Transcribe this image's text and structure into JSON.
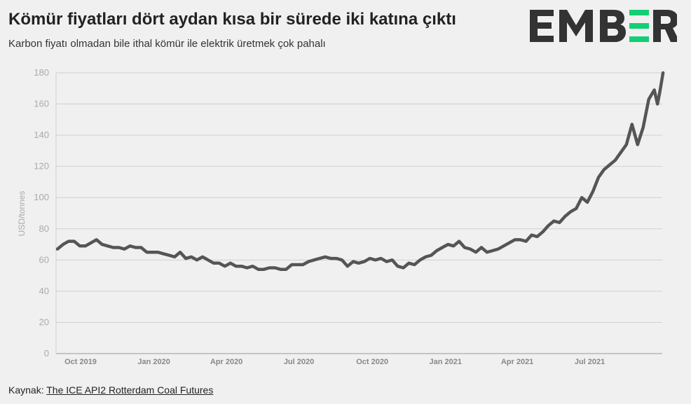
{
  "title": "Kömür fiyatları dört aydan kısa bir sürede iki katına çıktı",
  "subtitle": "Karbon fiyatı olmadan bile ithal kömür ile elektrik üretmek çok pahalı",
  "logo": {
    "text": "EMBER",
    "accent": "#13ce74",
    "color": "#333333"
  },
  "source": {
    "label": "Kaynak:",
    "link": "The ICE API2 Rotterdam Coal Futures"
  },
  "chart_data": {
    "type": "line",
    "title": "",
    "xlabel": "",
    "ylabel": "USD/tonnes",
    "ylim": [
      0,
      180
    ],
    "yticks": [
      0,
      20,
      40,
      60,
      80,
      100,
      120,
      140,
      160,
      180
    ],
    "xticks": [
      {
        "date": "2019-10-01",
        "label": "Oct 2019"
      },
      {
        "date": "2020-01-01",
        "label": "Jan 2020"
      },
      {
        "date": "2020-04-01",
        "label": "Apr 2020"
      },
      {
        "date": "2020-07-01",
        "label": "Jul 2020"
      },
      {
        "date": "2020-10-01",
        "label": "Oct 2020"
      },
      {
        "date": "2021-01-01",
        "label": "Jan 2021"
      },
      {
        "date": "2021-04-01",
        "label": "Apr 2021"
      },
      {
        "date": "2021-07-01",
        "label": "Jul 2021"
      }
    ],
    "grid": true,
    "line_color": "#555555",
    "series": [
      {
        "x": [
          "2019-09-02",
          "2019-09-09",
          "2019-09-16",
          "2019-09-23",
          "2019-09-30",
          "2019-10-07",
          "2019-10-14",
          "2019-10-21",
          "2019-10-28",
          "2019-11-04",
          "2019-11-11",
          "2019-11-18",
          "2019-11-25",
          "2019-12-02",
          "2019-12-09",
          "2019-12-16",
          "2019-12-23",
          "2020-01-06",
          "2020-01-13",
          "2020-01-20",
          "2020-01-27",
          "2020-02-03",
          "2020-02-10",
          "2020-02-17",
          "2020-02-24",
          "2020-03-02",
          "2020-03-09",
          "2020-03-16",
          "2020-03-23",
          "2020-03-30",
          "2020-04-06",
          "2020-04-13",
          "2020-04-20",
          "2020-04-27",
          "2020-05-04",
          "2020-05-11",
          "2020-05-18",
          "2020-05-25",
          "2020-06-01",
          "2020-06-08",
          "2020-06-15",
          "2020-06-22",
          "2020-06-29",
          "2020-07-06",
          "2020-07-13",
          "2020-07-20",
          "2020-07-27",
          "2020-08-03",
          "2020-08-10",
          "2020-08-17",
          "2020-08-24",
          "2020-08-31",
          "2020-09-07",
          "2020-09-14",
          "2020-09-21",
          "2020-09-28",
          "2020-10-05",
          "2020-10-12",
          "2020-10-19",
          "2020-10-26",
          "2020-11-02",
          "2020-11-09",
          "2020-11-16",
          "2020-11-23",
          "2020-11-30",
          "2020-12-07",
          "2020-12-14",
          "2020-12-21",
          "2020-12-28",
          "2021-01-04",
          "2021-01-11",
          "2021-01-18",
          "2021-01-25",
          "2021-02-01",
          "2021-02-08",
          "2021-02-15",
          "2021-02-22",
          "2021-03-01",
          "2021-03-08",
          "2021-03-15",
          "2021-03-22",
          "2021-03-29",
          "2021-04-05",
          "2021-04-12",
          "2021-04-19",
          "2021-04-26",
          "2021-05-03",
          "2021-05-10",
          "2021-05-17",
          "2021-05-24",
          "2021-05-31",
          "2021-06-07",
          "2021-06-14",
          "2021-06-21",
          "2021-06-28",
          "2021-07-05",
          "2021-07-12",
          "2021-07-19",
          "2021-07-26",
          "2021-08-02",
          "2021-08-09",
          "2021-08-16",
          "2021-08-23",
          "2021-08-30",
          "2021-09-06",
          "2021-09-13",
          "2021-09-20",
          "2021-09-24",
          "2021-09-27",
          "2021-10-01"
        ],
        "values": [
          67,
          70,
          72,
          72,
          69,
          69,
          71,
          73,
          70,
          69,
          68,
          68,
          67,
          69,
          68,
          68,
          65,
          65,
          64,
          63,
          62,
          65,
          61,
          62,
          60,
          62,
          60,
          58,
          58,
          56,
          58,
          56,
          56,
          55,
          56,
          54,
          54,
          55,
          55,
          54,
          54,
          57,
          57,
          57,
          59,
          60,
          61,
          62,
          61,
          61,
          60,
          56,
          59,
          58,
          59,
          61,
          60,
          61,
          59,
          60,
          56,
          55,
          58,
          57,
          60,
          62,
          63,
          66,
          68,
          70,
          69,
          72,
          68,
          67,
          65,
          68,
          65,
          66,
          67,
          69,
          71,
          73,
          73,
          72,
          76,
          75,
          78,
          82,
          85,
          84,
          88,
          91,
          93,
          100,
          97,
          104,
          113,
          118,
          121,
          124,
          129,
          134,
          147,
          134,
          145,
          163,
          169,
          160,
          168,
          180
        ]
      }
    ]
  }
}
